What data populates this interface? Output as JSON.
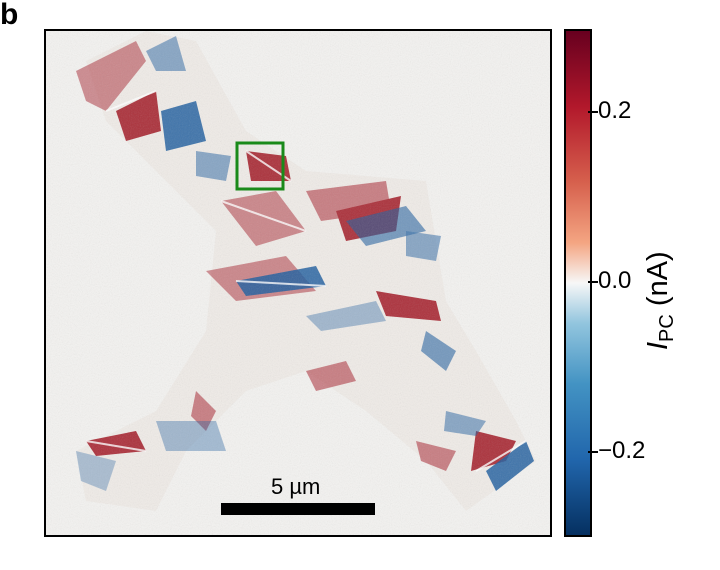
{
  "panel": {
    "label": "b"
  },
  "image": {
    "description_icon": "photocurrent-map-image",
    "colors": {
      "background": "#f4f3f1",
      "positive": "#a1121f",
      "negative": "#1f5fa0",
      "roi_box": "#1a8a1a"
    }
  },
  "colorbar": {
    "label_symbol": "I",
    "label_subscript": "PC",
    "label_unit": "(nA)",
    "ticks": [
      "0.2",
      "0.0",
      "−0.2"
    ],
    "range": [
      -0.3,
      0.3
    ],
    "colors": {
      "top": "#67001f",
      "mid": "#f7f7f7",
      "bottom": "#053061"
    }
  },
  "scale_bar": {
    "label": "5 µm"
  }
}
